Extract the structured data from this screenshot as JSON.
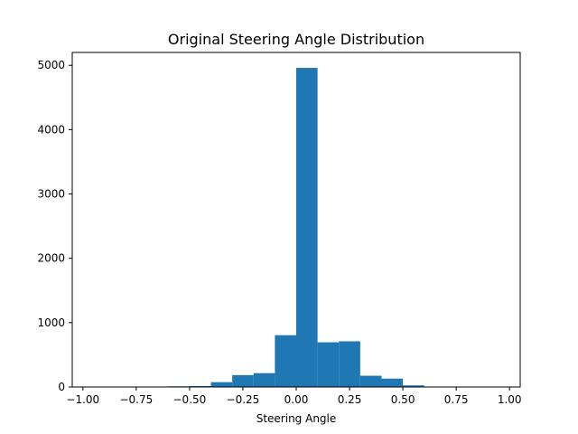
{
  "chart_data": {
    "type": "bar",
    "title": "Original Steering Angle Distribution",
    "xlabel": "Steering Angle",
    "ylabel": "",
    "xlim": [
      -1.05,
      1.05
    ],
    "ylim": [
      0,
      5200
    ],
    "xticks": [
      -1.0,
      -0.75,
      -0.5,
      -0.25,
      0.0,
      0.25,
      0.5,
      0.75,
      1.0
    ],
    "xtick_labels": [
      "−1.00",
      "−0.75",
      "−0.50",
      "−0.25",
      "0.00",
      "0.25",
      "0.50",
      "0.75",
      "1.00"
    ],
    "yticks": [
      0,
      1000,
      2000,
      3000,
      4000,
      5000
    ],
    "ytick_labels": [
      "0",
      "1000",
      "2000",
      "3000",
      "4000",
      "5000"
    ],
    "bar_color": "#1f77b4",
    "grid": false,
    "bins": [
      {
        "x0": -1.0,
        "x1": -0.9,
        "count": 0
      },
      {
        "x0": -0.9,
        "x1": -0.8,
        "count": 0
      },
      {
        "x0": -0.8,
        "x1": -0.7,
        "count": 0
      },
      {
        "x0": -0.7,
        "x1": -0.6,
        "count": 0
      },
      {
        "x0": -0.6,
        "x1": -0.5,
        "count": 10
      },
      {
        "x0": -0.5,
        "x1": -0.4,
        "count": 15
      },
      {
        "x0": -0.4,
        "x1": -0.3,
        "count": 75
      },
      {
        "x0": -0.3,
        "x1": -0.2,
        "count": 185
      },
      {
        "x0": -0.2,
        "x1": -0.1,
        "count": 215
      },
      {
        "x0": -0.1,
        "x1": 0.0,
        "count": 805
      },
      {
        "x0": 0.0,
        "x1": 0.1,
        "count": 4960
      },
      {
        "x0": 0.1,
        "x1": 0.2,
        "count": 695
      },
      {
        "x0": 0.2,
        "x1": 0.3,
        "count": 710
      },
      {
        "x0": 0.3,
        "x1": 0.4,
        "count": 175
      },
      {
        "x0": 0.4,
        "x1": 0.5,
        "count": 130
      },
      {
        "x0": 0.5,
        "x1": 0.6,
        "count": 25
      },
      {
        "x0": 0.6,
        "x1": 0.7,
        "count": 2
      },
      {
        "x0": 0.7,
        "x1": 0.8,
        "count": 0
      },
      {
        "x0": 0.8,
        "x1": 0.9,
        "count": 0
      },
      {
        "x0": 0.9,
        "x1": 1.0,
        "count": 0
      }
    ]
  }
}
